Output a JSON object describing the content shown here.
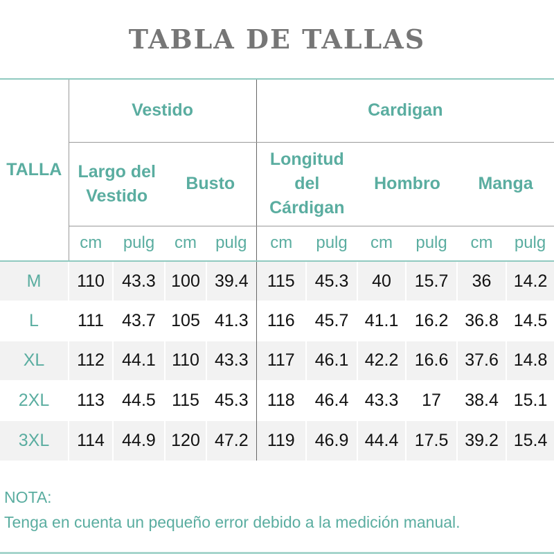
{
  "title": "TABLA DE TALLAS",
  "header": {
    "size_label": "TALLA",
    "groups": [
      "Vestido",
      "Cardigan"
    ],
    "measures": [
      "Largo del Vestido",
      "Busto",
      "Longitud del Cárdigan",
      "Hombro",
      "Manga"
    ],
    "units": [
      "cm",
      "pulg",
      "cm",
      "pulg",
      "cm",
      "pulg",
      "cm",
      "pulg",
      "cm",
      "pulg"
    ]
  },
  "rows": [
    {
      "size": "M",
      "values": [
        "110",
        "43.3",
        "100",
        "39.4",
        "115",
        "45.3",
        "40",
        "15.7",
        "36",
        "14.2"
      ]
    },
    {
      "size": "L",
      "values": [
        "111",
        "43.7",
        "105",
        "41.3",
        "116",
        "45.7",
        "41.1",
        "16.2",
        "36.8",
        "14.5"
      ]
    },
    {
      "size": "XL",
      "values": [
        "112",
        "44.1",
        "110",
        "43.3",
        "117",
        "46.1",
        "42.2",
        "16.6",
        "37.6",
        "14.8"
      ]
    },
    {
      "size": "2XL",
      "values": [
        "113",
        "44.5",
        "115",
        "45.3",
        "118",
        "46.4",
        "43.3",
        "17",
        "38.4",
        "15.1"
      ]
    },
    {
      "size": "3XL",
      "values": [
        "114",
        "44.9",
        "120",
        "47.2",
        "119",
        "46.9",
        "44.4",
        "17.5",
        "39.2",
        "15.4"
      ]
    }
  ],
  "note": {
    "label": "NOTA:",
    "text": "Tenga en cuenta un pequeño error debido a la medición manual."
  },
  "colors": {
    "accent": "#5aada0",
    "title": "#767676",
    "row_alt": "#f2f2f2"
  }
}
